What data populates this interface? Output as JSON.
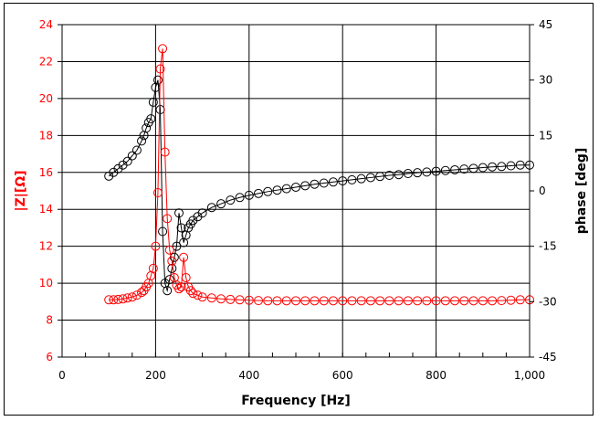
{
  "chart_data": {
    "type": "scatter",
    "title": "",
    "xlabel": "Frequency [Hz]",
    "ylabel": "|Z|[Ω]",
    "y2label": "phase [deg]",
    "xlim": [
      0,
      1000
    ],
    "ylim": [
      6,
      24
    ],
    "y2lim": [
      -45,
      45
    ],
    "x_ticks": [
      0,
      200,
      400,
      600,
      800,
      1000
    ],
    "x_tick_labels": [
      "0",
      "200",
      "400",
      "600",
      "800",
      "1,000"
    ],
    "y_ticks": [
      6,
      8,
      10,
      12,
      14,
      16,
      18,
      20,
      22,
      24
    ],
    "y_tick_labels": [
      "6",
      "8",
      "10",
      "12",
      "14",
      "16",
      "18",
      "20",
      "22",
      "24"
    ],
    "y2_ticks": [
      -45,
      -30,
      -15,
      0,
      15,
      30,
      45
    ],
    "y2_tick_labels": [
      "-45",
      "-30",
      "-15",
      "0",
      "15",
      "30",
      "45"
    ],
    "grid": true,
    "legend": "none",
    "x": [
      100,
      110,
      120,
      130,
      140,
      150,
      160,
      170,
      175,
      180,
      185,
      190,
      195,
      200,
      205,
      210,
      215,
      220,
      225,
      230,
      235,
      240,
      245,
      250,
      255,
      260,
      265,
      270,
      275,
      280,
      290,
      300,
      320,
      340,
      360,
      380,
      400,
      420,
      440,
      460,
      480,
      500,
      520,
      540,
      560,
      580,
      600,
      620,
      640,
      660,
      680,
      700,
      720,
      740,
      760,
      780,
      800,
      820,
      840,
      860,
      880,
      900,
      920,
      940,
      960,
      980,
      1000
    ],
    "series": [
      {
        "name": "|Z|",
        "axis": "left",
        "color": "#ff0000",
        "values": [
          9.1,
          9.1,
          9.12,
          9.15,
          9.2,
          9.25,
          9.35,
          9.5,
          9.6,
          9.8,
          10.0,
          10.4,
          10.8,
          12.0,
          14.9,
          21.6,
          22.7,
          17.1,
          13.5,
          11.8,
          11.2,
          10.3,
          9.9,
          9.7,
          9.8,
          11.4,
          10.3,
          9.8,
          9.6,
          9.45,
          9.35,
          9.25,
          9.2,
          9.15,
          9.12,
          9.1,
          9.08,
          9.06,
          9.05,
          9.05,
          9.05,
          9.05,
          9.05,
          9.05,
          9.05,
          9.05,
          9.05,
          9.05,
          9.05,
          9.05,
          9.05,
          9.05,
          9.05,
          9.05,
          9.05,
          9.05,
          9.05,
          9.05,
          9.05,
          9.05,
          9.05,
          9.05,
          9.05,
          9.06,
          9.08,
          9.1,
          9.1
        ]
      },
      {
        "name": "phase",
        "axis": "right",
        "color": "#000000",
        "values": [
          4,
          5,
          6,
          7,
          8,
          9.5,
          11,
          13.5,
          15,
          17,
          18.5,
          19.5,
          24,
          28,
          30,
          22,
          -11,
          -25,
          -27,
          -24,
          -21,
          -18,
          -15,
          -6,
          -10,
          -14,
          -12,
          -10,
          -9,
          -8,
          -7,
          -6,
          -4.5,
          -3.5,
          -2.5,
          -1.8,
          -1.2,
          -0.7,
          -0.2,
          0.2,
          0.6,
          1,
          1.4,
          1.8,
          2.1,
          2.4,
          2.7,
          3,
          3.3,
          3.6,
          3.9,
          4.2,
          4.4,
          4.7,
          4.9,
          5.1,
          5.3,
          5.5,
          5.7,
          5.9,
          6.1,
          6.3,
          6.5,
          6.6,
          6.8,
          7,
          7
        ]
      }
    ]
  }
}
